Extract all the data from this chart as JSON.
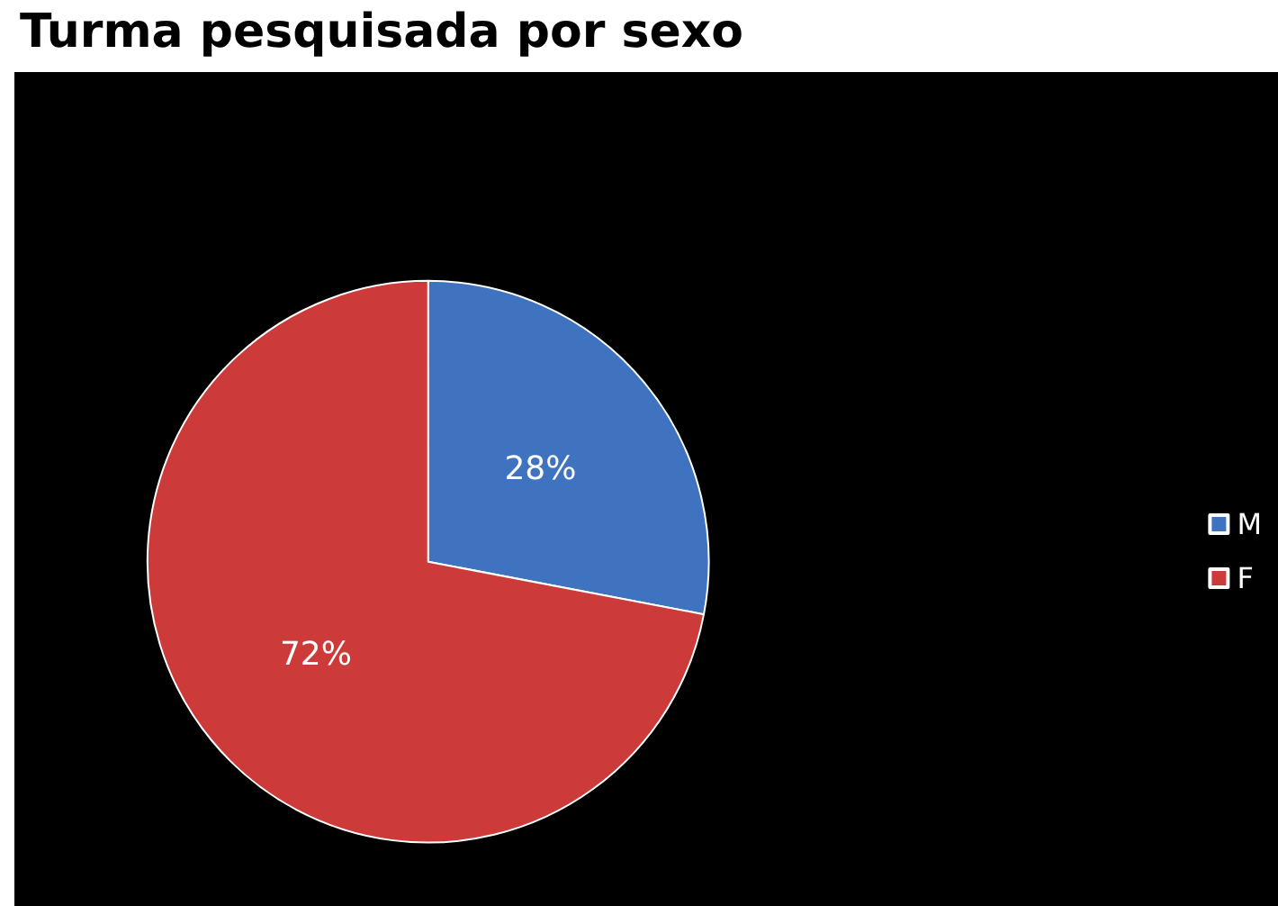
{
  "chart_data": {
    "type": "pie",
    "title": "Turma pesquisada por sexo",
    "categories": [
      "M",
      "F"
    ],
    "values": [
      28,
      72
    ],
    "colors": [
      "#3f73c0",
      "#cc3a3a"
    ],
    "value_labels": [
      "28%",
      "72%"
    ],
    "legend": "right"
  }
}
